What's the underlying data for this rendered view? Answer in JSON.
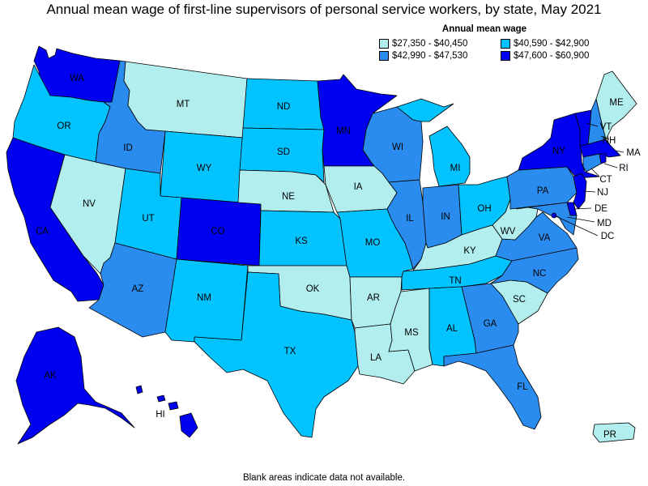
{
  "title": "Annual mean wage of first-line supervisors of personal service workers, by state, May 2021",
  "footnote": "Blank areas indicate data not available.",
  "legend": {
    "title": "Annual mean wage",
    "items": [
      {
        "label": "$27,350 - $40,450",
        "color": "#b3eeee"
      },
      {
        "label": "$40,590 - $42,900",
        "color": "#00c3ff"
      },
      {
        "label": "$42,990 - $47,530",
        "color": "#2b8cf0"
      },
      {
        "label": "$47,600 - $60,900",
        "color": "#0000f0"
      }
    ]
  },
  "states": [
    {
      "abbr": "WA",
      "bin": 3
    },
    {
      "abbr": "OR",
      "bin": 1
    },
    {
      "abbr": "CA",
      "bin": 3
    },
    {
      "abbr": "NV",
      "bin": 0
    },
    {
      "abbr": "ID",
      "bin": 2
    },
    {
      "abbr": "MT",
      "bin": 0
    },
    {
      "abbr": "WY",
      "bin": 1
    },
    {
      "abbr": "UT",
      "bin": 1
    },
    {
      "abbr": "AZ",
      "bin": 2
    },
    {
      "abbr": "CO",
      "bin": 3
    },
    {
      "abbr": "NM",
      "bin": 1
    },
    {
      "abbr": "ND",
      "bin": 1
    },
    {
      "abbr": "SD",
      "bin": 1
    },
    {
      "abbr": "NE",
      "bin": 0
    },
    {
      "abbr": "KS",
      "bin": 1
    },
    {
      "abbr": "OK",
      "bin": 0
    },
    {
      "abbr": "TX",
      "bin": 1
    },
    {
      "abbr": "MN",
      "bin": 3
    },
    {
      "abbr": "IA",
      "bin": 0
    },
    {
      "abbr": "MO",
      "bin": 1
    },
    {
      "abbr": "AR",
      "bin": 0
    },
    {
      "abbr": "LA",
      "bin": 0
    },
    {
      "abbr": "WI",
      "bin": 2
    },
    {
      "abbr": "IL",
      "bin": 2
    },
    {
      "abbr": "MI",
      "bin": 1
    },
    {
      "abbr": "IN",
      "bin": 2
    },
    {
      "abbr": "OH",
      "bin": 1
    },
    {
      "abbr": "KY",
      "bin": 0
    },
    {
      "abbr": "TN",
      "bin": 1
    },
    {
      "abbr": "MS",
      "bin": 0
    },
    {
      "abbr": "AL",
      "bin": 1
    },
    {
      "abbr": "GA",
      "bin": 2
    },
    {
      "abbr": "FL",
      "bin": 2
    },
    {
      "abbr": "SC",
      "bin": 0
    },
    {
      "abbr": "NC",
      "bin": 2
    },
    {
      "abbr": "VA",
      "bin": 2
    },
    {
      "abbr": "WV",
      "bin": 0
    },
    {
      "abbr": "PA",
      "bin": 2
    },
    {
      "abbr": "NY",
      "bin": 3
    },
    {
      "abbr": "VT",
      "bin": 3
    },
    {
      "abbr": "NH",
      "bin": 2
    },
    {
      "abbr": "ME",
      "bin": 0
    },
    {
      "abbr": "MA",
      "bin": 3
    },
    {
      "abbr": "RI",
      "bin": 3
    },
    {
      "abbr": "CT",
      "bin": 2
    },
    {
      "abbr": "NJ",
      "bin": 3
    },
    {
      "abbr": "DE",
      "bin": 3
    },
    {
      "abbr": "MD",
      "bin": 2
    },
    {
      "abbr": "DC",
      "bin": 3
    },
    {
      "abbr": "AK",
      "bin": 3
    },
    {
      "abbr": "HI",
      "bin": 3
    },
    {
      "abbr": "PR",
      "bin": 0
    }
  ]
}
